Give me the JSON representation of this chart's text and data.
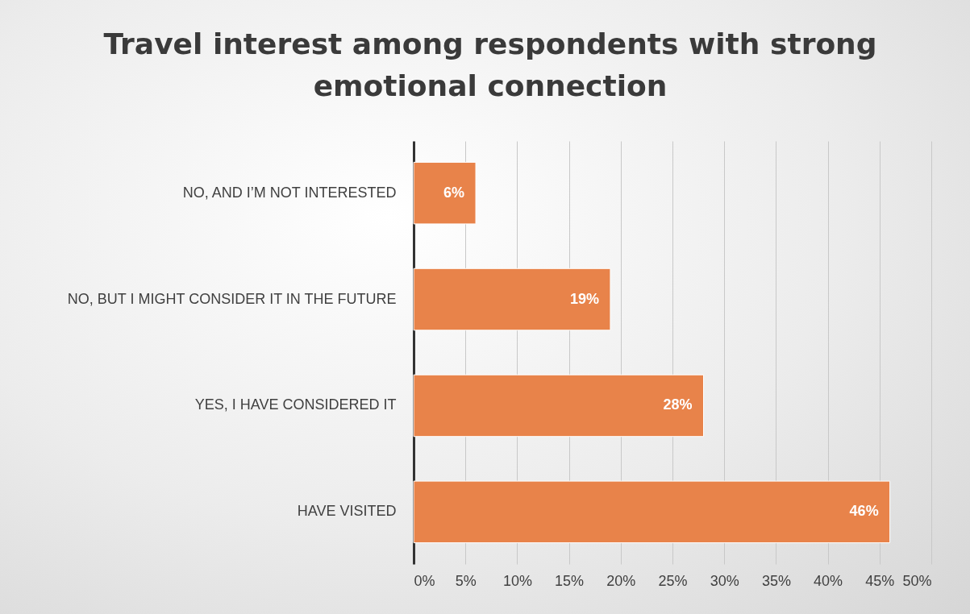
{
  "chart_data": {
    "type": "bar",
    "orientation": "horizontal",
    "title": "Travel interest among respondents with strong emotional connection",
    "categories": [
      "NO, AND I’M NOT INTERESTED",
      "NO, BUT I MIGHT CONSIDER IT IN THE FUTURE",
      "YES, I HAVE CONSIDERED IT",
      "HAVE VISITED"
    ],
    "values": [
      6,
      19,
      28,
      46
    ],
    "value_labels": [
      "6%",
      "19%",
      "28%",
      "46%"
    ],
    "color": "#e8834a",
    "xlim": [
      0,
      50
    ],
    "xticks": [
      {
        "value": 0,
        "label": "0%"
      },
      {
        "value": 5,
        "label": "5%"
      },
      {
        "value": 10,
        "label": "10%"
      },
      {
        "value": 15,
        "label": "15%"
      },
      {
        "value": 20,
        "label": "20%"
      },
      {
        "value": 25,
        "label": "25%"
      },
      {
        "value": 30,
        "label": "30%"
      },
      {
        "value": 35,
        "label": "35%"
      },
      {
        "value": 40,
        "label": "40%"
      },
      {
        "value": 45,
        "label": "45%"
      },
      {
        "value": 50,
        "label": "50%"
      }
    ],
    "grid": "x"
  }
}
